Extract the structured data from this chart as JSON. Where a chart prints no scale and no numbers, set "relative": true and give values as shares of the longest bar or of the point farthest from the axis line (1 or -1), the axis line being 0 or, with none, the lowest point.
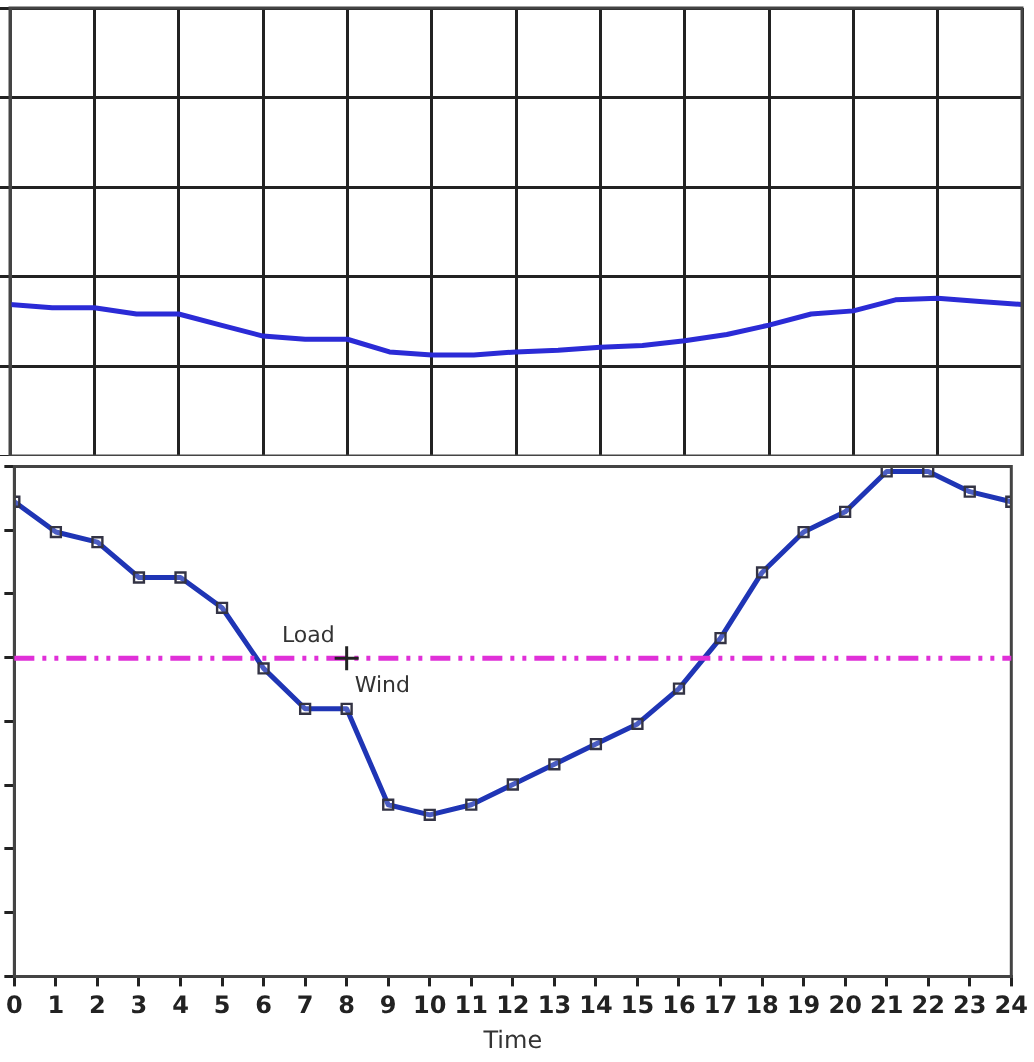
{
  "chart_data": [
    {
      "type": "line",
      "relative": true,
      "categories": [
        null,
        null,
        null,
        null,
        null,
        null,
        null,
        null,
        null,
        null,
        null,
        null,
        null,
        null,
        null,
        null,
        null,
        null,
        null,
        null,
        null,
        null,
        null,
        null,
        null
      ],
      "series": [
        {
          "color": "#2b2bd6",
          "values": [
            0.96,
            0.94,
            0.94,
            0.9,
            0.9,
            0.83,
            0.76,
            0.74,
            0.74,
            0.66,
            0.64,
            0.64,
            0.66,
            0.67,
            0.69,
            0.7,
            0.73,
            0.77,
            0.83,
            0.9,
            0.92,
            0.99,
            1,
            0.98,
            0.96
          ]
        }
      ],
      "grid": true,
      "tick_labels": false,
      "marker": "none"
    },
    {
      "type": "line",
      "relative": true,
      "x": [
        0,
        1,
        2,
        3,
        4,
        5,
        6,
        7,
        8,
        9,
        10,
        11,
        12,
        13,
        14,
        15,
        16,
        17,
        18,
        19,
        20,
        21,
        22,
        23,
        24
      ],
      "series": [
        {
          "color": "#1f35b5",
          "values": [
            0.94,
            0.88,
            0.86,
            0.79,
            0.79,
            0.73,
            0.61,
            0.53,
            0.53,
            0.34,
            0.32,
            0.34,
            0.38,
            0.42,
            0.46,
            0.5,
            0.57,
            0.67,
            0.8,
            0.88,
            0.92,
            1,
            1,
            0.96,
            0.94
          ]
        }
      ],
      "xlim": [
        0,
        24
      ],
      "xticks": [
        0,
        1,
        2,
        3,
        4,
        5,
        6,
        7,
        8,
        9,
        10,
        11,
        12,
        13,
        14,
        15,
        16,
        17,
        18,
        19,
        20,
        21,
        22,
        23,
        24
      ],
      "xlabel": "Time",
      "tick_labels": "x",
      "marker": "square",
      "line_style": "solid",
      "ref_lines": [
        {
          "axis": "y",
          "value": 0.63,
          "color": "#e030d8",
          "line_style": "dashed"
        }
      ],
      "annotations": [
        {
          "text": "Load",
          "x": 8,
          "y": 0.63
        },
        {
          "text": "Wind",
          "x": 8,
          "y": 0.63
        }
      ]
    }
  ]
}
